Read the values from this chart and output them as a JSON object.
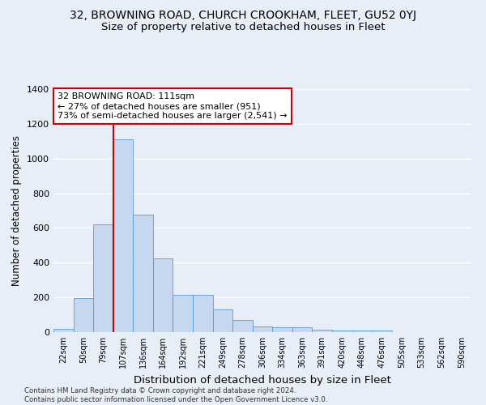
{
  "title": "32, BROWNING ROAD, CHURCH CROOKHAM, FLEET, GU52 0YJ",
  "subtitle": "Size of property relative to detached houses in Fleet",
  "xlabel": "Distribution of detached houses by size in Fleet",
  "ylabel": "Number of detached properties",
  "footnote": "Contains HM Land Registry data © Crown copyright and database right 2024.\nContains public sector information licensed under the Open Government Licence v3.0.",
  "bar_labels": [
    "22sqm",
    "50sqm",
    "79sqm",
    "107sqm",
    "136sqm",
    "164sqm",
    "192sqm",
    "221sqm",
    "249sqm",
    "278sqm",
    "306sqm",
    "334sqm",
    "363sqm",
    "391sqm",
    "420sqm",
    "448sqm",
    "476sqm",
    "505sqm",
    "533sqm",
    "562sqm",
    "590sqm"
  ],
  "bar_values": [
    18,
    195,
    620,
    1110,
    675,
    425,
    215,
    215,
    130,
    70,
    33,
    30,
    28,
    15,
    10,
    10,
    10,
    0,
    0,
    0,
    0
  ],
  "bar_color": "#c5d8f0",
  "bar_edgecolor": "#5a9bd5",
  "vline_x_index": 3,
  "vline_color": "#cc0000",
  "annotation_text": "32 BROWNING ROAD: 111sqm\n← 27% of detached houses are smaller (951)\n73% of semi-detached houses are larger (2,541) →",
  "annotation_box_edgecolor": "#cc0000",
  "ylim": [
    0,
    1400
  ],
  "yticks": [
    0,
    200,
    400,
    600,
    800,
    1000,
    1200,
    1400
  ],
  "bg_color": "#e8eef8",
  "plot_bg_color": "#e8eef8",
  "grid_color": "#ffffff",
  "title_fontsize": 10,
  "subtitle_fontsize": 9.5,
  "xlabel_fontsize": 9.5,
  "ylabel_fontsize": 8.5
}
